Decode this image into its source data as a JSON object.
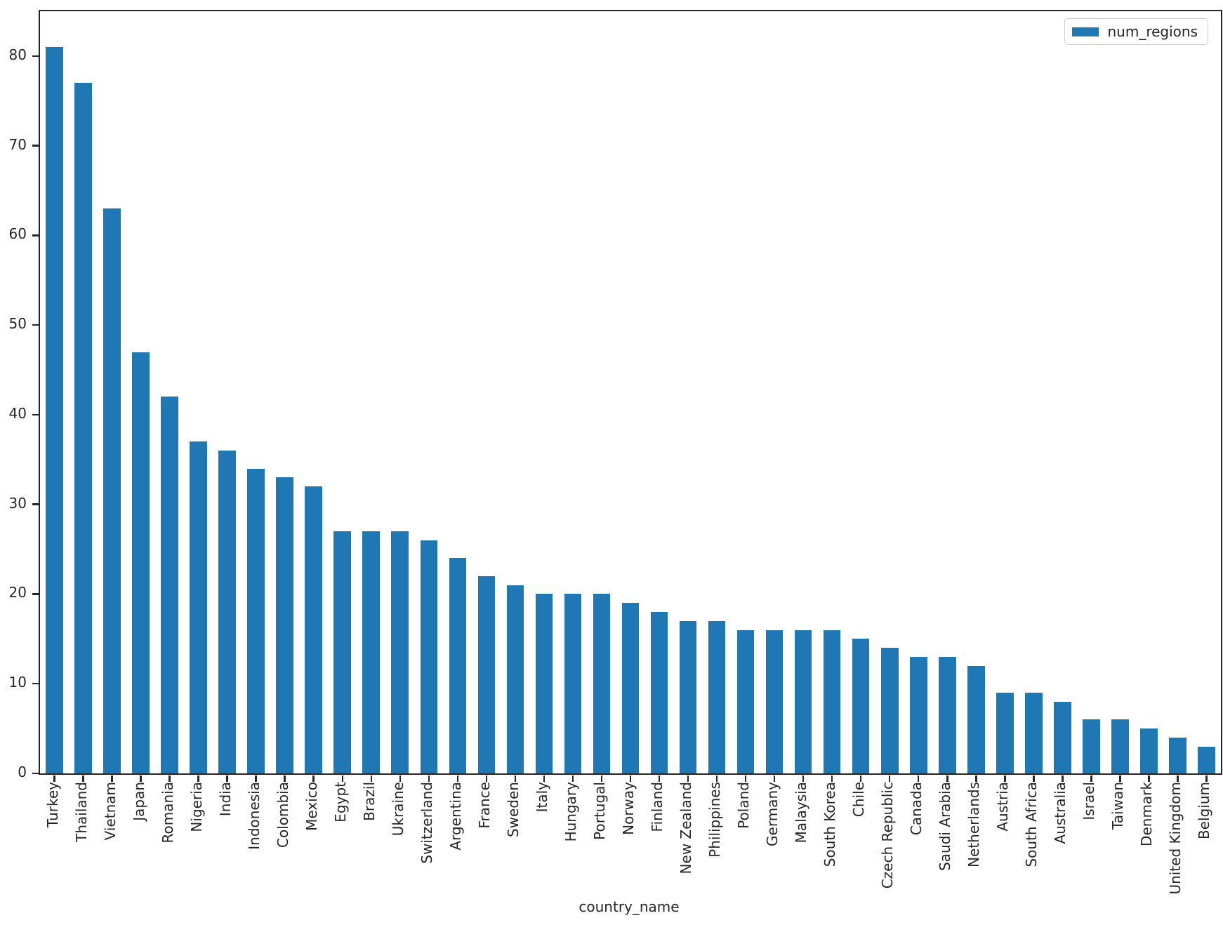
{
  "chart_data": {
    "type": "bar",
    "title": "",
    "xlabel": "country_name",
    "ylabel": "",
    "legend_label": "num_regions",
    "legend_position": "upper right",
    "bar_color": "#1f77b4",
    "axis_color": "#262626",
    "grid": false,
    "ylim": [
      0,
      85
    ],
    "yticks": [
      0,
      10,
      20,
      30,
      40,
      50,
      60,
      70,
      80
    ],
    "categories": [
      "Turkey",
      "Thailand",
      "Vietnam",
      "Japan",
      "Romania",
      "Nigeria",
      "India",
      "Indonesia",
      "Colombia",
      "Mexico",
      "Egypt",
      "Brazil",
      "Ukraine",
      "Switzerland",
      "Argentina",
      "France",
      "Sweden",
      "Italy",
      "Hungary",
      "Portugal",
      "Norway",
      "Finland",
      "New Zealand",
      "Philippines",
      "Poland",
      "Germany",
      "Malaysia",
      "South Korea",
      "Chile",
      "Czech Republic",
      "Canada",
      "Saudi Arabia",
      "Netherlands",
      "Austria",
      "South Africa",
      "Australia",
      "Israel",
      "Taiwan",
      "Denmark",
      "United Kingdom",
      "Belgium"
    ],
    "values": [
      81,
      77,
      63,
      47,
      42,
      37,
      36,
      34,
      33,
      32,
      27,
      27,
      27,
      26,
      24,
      22,
      21,
      20,
      20,
      20,
      19,
      18,
      17,
      17,
      16,
      16,
      16,
      16,
      15,
      14,
      13,
      13,
      12,
      9,
      9,
      8,
      6,
      6,
      5,
      4,
      3
    ]
  }
}
